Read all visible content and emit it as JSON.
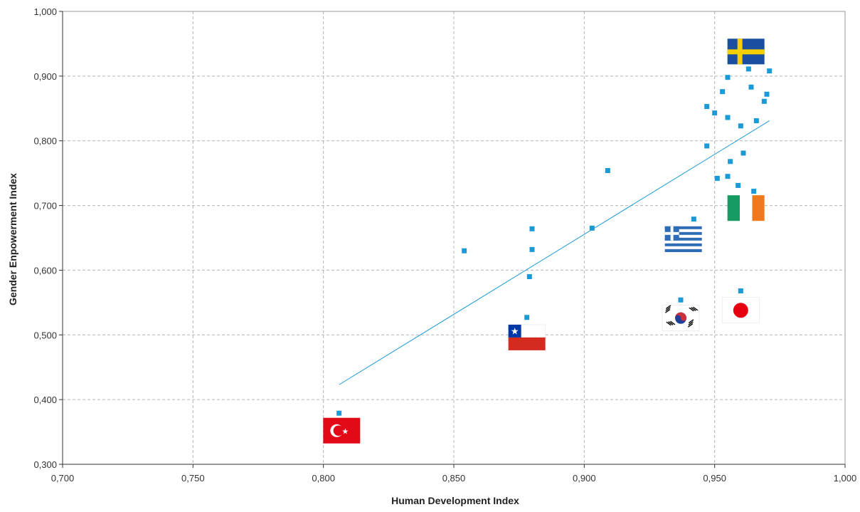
{
  "chart_data": {
    "type": "scatter",
    "title": "",
    "xlabel": "Human Development Index",
    "ylabel": "Gender Enpowerment Index",
    "xlim": [
      0.7,
      1.0
    ],
    "ylim": [
      0.3,
      1.0
    ],
    "x_ticks": [
      0.7,
      0.75,
      0.8,
      0.85,
      0.9,
      0.95,
      1.0
    ],
    "y_ticks": [
      0.3,
      0.4,
      0.5,
      0.6,
      0.7,
      0.8,
      0.9,
      1.0
    ],
    "x_tick_labels": [
      "0,700",
      "0,750",
      "0,800",
      "0,850",
      "0,900",
      "0,950",
      "1,000"
    ],
    "y_tick_labels": [
      "0,300",
      "0,400",
      "0,500",
      "0,600",
      "0,700",
      "0,800",
      "0,900",
      "1,000"
    ],
    "grid": true,
    "marker_color": "#1a9ad6",
    "trendline_color": "#1a9ad6",
    "points": [
      {
        "x": 0.806,
        "y": 0.379
      },
      {
        "x": 0.854,
        "y": 0.63
      },
      {
        "x": 0.878,
        "y": 0.527
      },
      {
        "x": 0.879,
        "y": 0.59
      },
      {
        "x": 0.88,
        "y": 0.632
      },
      {
        "x": 0.88,
        "y": 0.664
      },
      {
        "x": 0.903,
        "y": 0.665
      },
      {
        "x": 0.909,
        "y": 0.754
      },
      {
        "x": 0.937,
        "y": 0.554
      },
      {
        "x": 0.942,
        "y": 0.679
      },
      {
        "x": 0.947,
        "y": 0.792
      },
      {
        "x": 0.947,
        "y": 0.853
      },
      {
        "x": 0.95,
        "y": 0.843
      },
      {
        "x": 0.951,
        "y": 0.742
      },
      {
        "x": 0.953,
        "y": 0.876
      },
      {
        "x": 0.955,
        "y": 0.898
      },
      {
        "x": 0.955,
        "y": 0.836
      },
      {
        "x": 0.955,
        "y": 0.745
      },
      {
        "x": 0.956,
        "y": 0.768
      },
      {
        "x": 0.959,
        "y": 0.731
      },
      {
        "x": 0.96,
        "y": 0.823
      },
      {
        "x": 0.96,
        "y": 0.568
      },
      {
        "x": 0.961,
        "y": 0.781
      },
      {
        "x": 0.963,
        "y": 0.911
      },
      {
        "x": 0.964,
        "y": 0.883
      },
      {
        "x": 0.965,
        "y": 0.722
      },
      {
        "x": 0.966,
        "y": 0.831
      },
      {
        "x": 0.969,
        "y": 0.861
      },
      {
        "x": 0.97,
        "y": 0.872
      },
      {
        "x": 0.971,
        "y": 0.908
      }
    ],
    "trendline": {
      "x1": 0.806,
      "y1": 0.423,
      "x2": 0.971,
      "y2": 0.831
    },
    "flags": [
      {
        "icon": "turkey-flag-icon",
        "x": 0.807,
        "y": 0.352
      },
      {
        "icon": "chile-flag-icon",
        "x": 0.878,
        "y": 0.496
      },
      {
        "icon": "greece-flag-icon",
        "x": 0.938,
        "y": 0.648
      },
      {
        "icon": "south-korea-flag-icon",
        "x": 0.937,
        "y": 0.526
      },
      {
        "icon": "japan-flag-icon",
        "x": 0.96,
        "y": 0.538
      },
      {
        "icon": "ireland-flag-icon",
        "x": 0.962,
        "y": 0.696
      },
      {
        "icon": "sweden-flag-icon",
        "x": 0.962,
        "y": 0.938
      }
    ]
  }
}
